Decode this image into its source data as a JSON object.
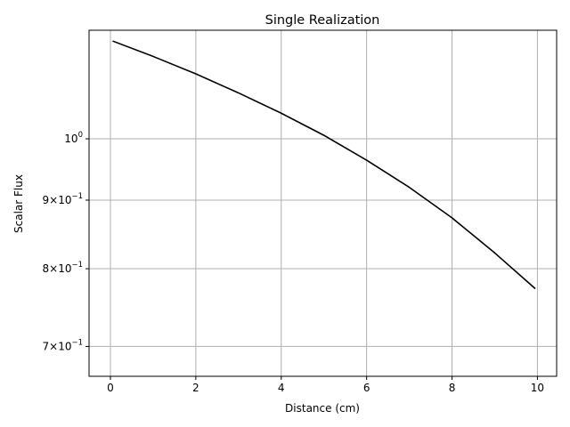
{
  "chart_data": {
    "type": "line",
    "title": "Single Realization",
    "xlabel": "Distance (cm)",
    "ylabel": "Scalar Flux",
    "xlim": [
      -0.5,
      10.45
    ],
    "ylim": [
      0.665,
      1.205
    ],
    "yscale": "log",
    "grid": true,
    "line_color": "#000000",
    "grid_color": "#b0b0b0",
    "x_ticks": [
      0,
      2,
      4,
      6,
      8,
      10
    ],
    "x_tick_labels": [
      "0",
      "2",
      "4",
      "6",
      "8",
      "10"
    ],
    "y_ticks": [
      {
        "value": 1.0,
        "base": "10",
        "exp": "0"
      },
      {
        "value": 0.9,
        "base": "9×10",
        "exp": "−1"
      },
      {
        "value": 0.8,
        "base": "8×10",
        "exp": "−1"
      },
      {
        "value": 0.7,
        "base": "7×10",
        "exp": "−1"
      }
    ],
    "series": [
      {
        "x": [
          0.05,
          1,
          2,
          3,
          4,
          5,
          6,
          7,
          8,
          9,
          9.95
        ],
        "y": [
          1.183,
          1.152,
          1.118,
          1.082,
          1.045,
          1.006,
          0.964,
          0.92,
          0.873,
          0.822,
          0.773
        ]
      }
    ]
  }
}
